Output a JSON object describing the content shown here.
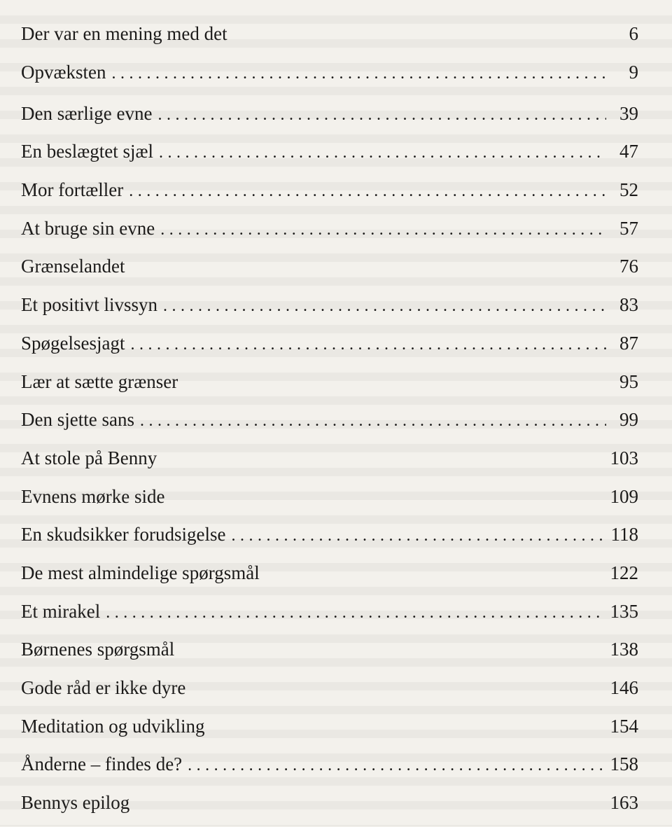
{
  "toc": {
    "entries": [
      {
        "title": "Der var en mening med det",
        "page": "6",
        "leader": false
      },
      {
        "title": "Opvæksten",
        "page": "9",
        "leader": true
      },
      {
        "title": "Den særlige evne",
        "page": "39",
        "leader": true
      },
      {
        "title": "En beslægtet sjæl",
        "page": "47",
        "leader": true
      },
      {
        "title": "Mor fortæller",
        "page": "52",
        "leader": true
      },
      {
        "title": "At bruge sin evne",
        "page": "57",
        "leader": true
      },
      {
        "title": "Grænselandet",
        "page": "76",
        "leader": false
      },
      {
        "title": "Et positivt livssyn",
        "page": "83",
        "leader": true
      },
      {
        "title": "Spøgelsesjagt",
        "page": "87",
        "leader": true
      },
      {
        "title": "Lær at sætte grænser",
        "page": "95",
        "leader": false
      },
      {
        "title": "Den sjette sans",
        "page": "99",
        "leader": true
      },
      {
        "title": "At stole på Benny",
        "page": "103",
        "leader": false
      },
      {
        "title": "Evnens mørke side",
        "page": "109",
        "leader": false
      },
      {
        "title": "En skudsikker forudsigelse",
        "page": "118",
        "leader": true
      },
      {
        "title": "De mest almindelige spørgsmål",
        "page": "122",
        "leader": false
      },
      {
        "title": "Et mirakel",
        "page": "135",
        "leader": true
      },
      {
        "title": "Børnenes spørgsmål",
        "page": "138",
        "leader": false
      },
      {
        "title": "Gode råd er ikke dyre",
        "page": "146",
        "leader": false
      },
      {
        "title": "Meditation og udvikling",
        "page": "154",
        "leader": false
      },
      {
        "title": "Ånderne – findes de?",
        "page": "158",
        "leader": true
      },
      {
        "title": "Bennys epilog",
        "page": "163",
        "leader": false
      }
    ]
  }
}
